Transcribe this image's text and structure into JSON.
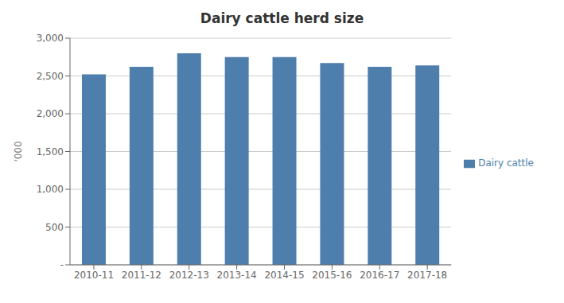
{
  "chart_data": {
    "type": "bar",
    "title": "Dairy cattle herd size",
    "ylabel": "'000",
    "categories": [
      "2010-11",
      "2011-12",
      "2012-13",
      "2013-14",
      "2014-15",
      "2015-16",
      "2016-17",
      "2017-18"
    ],
    "series": [
      {
        "name": "Dairy cattle",
        "color": "#4e7fac",
        "values": [
          2520,
          2620,
          2800,
          2750,
          2750,
          2670,
          2620,
          2640
        ]
      }
    ],
    "ylim": [
      0,
      3000
    ],
    "yticks": [
      {
        "value": 0,
        "label": "-"
      },
      500,
      {
        "value": 1000,
        "label": "1,000"
      },
      {
        "value": 1500,
        "label": "1,500"
      },
      {
        "value": 2000,
        "label": "2,000"
      },
      {
        "value": 2500,
        "label": "2,500"
      },
      {
        "value": 3000,
        "label": "3,000"
      }
    ],
    "grid": true,
    "legend": "right"
  }
}
